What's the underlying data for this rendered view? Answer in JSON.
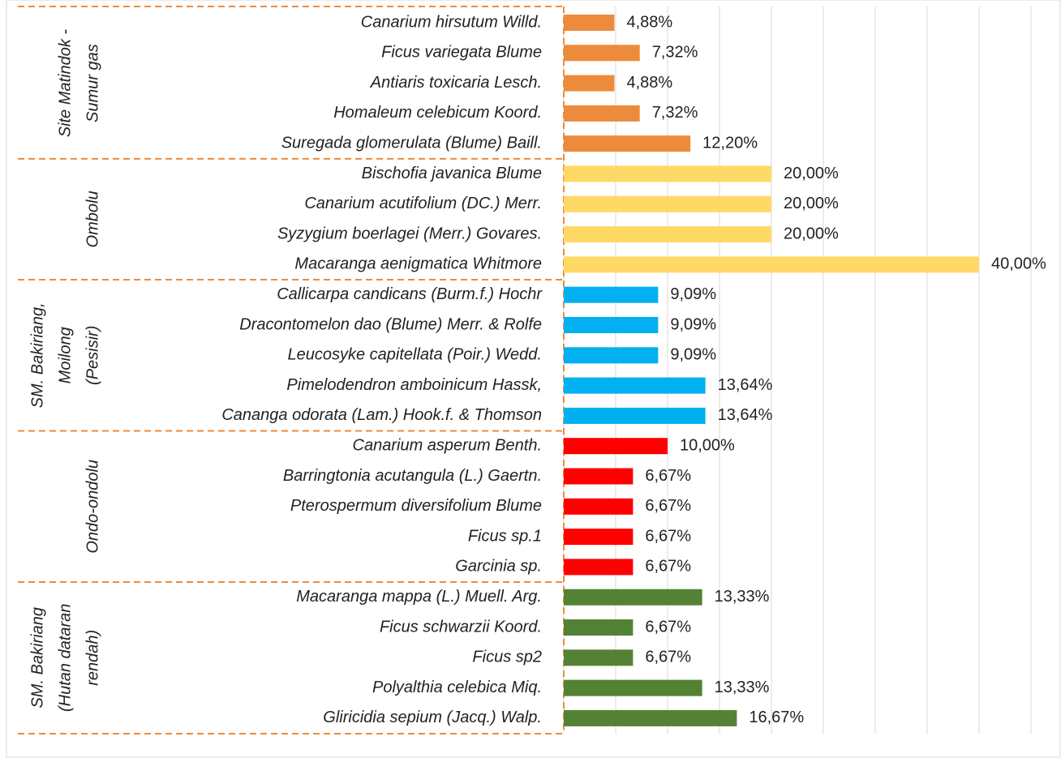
{
  "chart_data": {
    "type": "bar",
    "orientation": "horizontal",
    "xlim": [
      0,
      45
    ],
    "xticks": [
      0,
      5,
      10,
      15,
      20,
      25,
      30,
      35,
      40,
      45
    ],
    "grid": true,
    "groups": [
      {
        "name_lines": [
          "Site Matindok -",
          "Sumur gas"
        ],
        "color": "#ed8b3c",
        "categories": [
          "Canarium hirsutum Willd.",
          "Ficus variegata Blume",
          "Antiaris toxicaria Lesch.",
          "Homaleum celebicum Koord.",
          "Suregada glomerulata (Blume) Baill."
        ],
        "values": [
          4.88,
          7.32,
          4.88,
          7.32,
          12.2
        ],
        "value_labels": [
          "4,88%",
          "7,32%",
          "4,88%",
          "7,32%",
          "12,20%"
        ]
      },
      {
        "name_lines": [
          "Ombolu"
        ],
        "color": "#ffd966",
        "categories": [
          "Bischofia javanica Blume",
          "Canarium acutifolium (DC.) Merr.",
          "Syzygium boerlagei  (Merr.) Govares.",
          "Macaranga aenigmatica Whitmore"
        ],
        "values": [
          20.0,
          20.0,
          20.0,
          40.0
        ],
        "value_labels": [
          "20,00%",
          "20,00%",
          "20,00%",
          "40,00%"
        ]
      },
      {
        "name_lines": [
          "SM. Bakiriang,",
          "Moilong",
          "(Pesisir)"
        ],
        "color": "#00b0f0",
        "categories": [
          "Callicarpa candicans (Burm.f.) Hochr",
          "Dracontomelon dao (Blume) Merr. & Rolfe",
          "Leucosyke capitellata (Poir.) Wedd.",
          "Pimelodendron amboinicum Hassk,",
          "Cananga odorata (Lam.) Hook.f. & Thomson"
        ],
        "values": [
          9.09,
          9.09,
          9.09,
          13.64,
          13.64
        ],
        "value_labels": [
          "9,09%",
          "9,09%",
          "9,09%",
          "13,64%",
          "13,64%"
        ]
      },
      {
        "name_lines": [
          "Ondo-ondolu"
        ],
        "color": "#ff0000",
        "categories": [
          "Canarium asperum Benth.",
          "Barringtonia acutangula (L.) Gaertn.",
          "Pterospermum diversifolium Blume",
          "Ficus sp.1",
          "Garcinia sp."
        ],
        "values": [
          10.0,
          6.67,
          6.67,
          6.67,
          6.67
        ],
        "value_labels": [
          "10,00%",
          "6,67%",
          "6,67%",
          "6,67%",
          "6,67%"
        ]
      },
      {
        "name_lines": [
          "SM. Bakiriang",
          "(Hutan dataran",
          "rendah)"
        ],
        "color": "#548235",
        "categories": [
          "Macaranga mappa (L.) Muell. Arg.",
          "Ficus schwarzii Koord.",
          "Ficus sp2",
          "Polyalthia celebica Miq.",
          "Gliricidia sepium (Jacq.) Walp."
        ],
        "values": [
          13.33,
          6.67,
          6.67,
          13.33,
          16.67
        ],
        "value_labels": [
          "13,33%",
          "6,67%",
          "6,67%",
          "13,33%",
          "16,67%"
        ]
      }
    ]
  }
}
